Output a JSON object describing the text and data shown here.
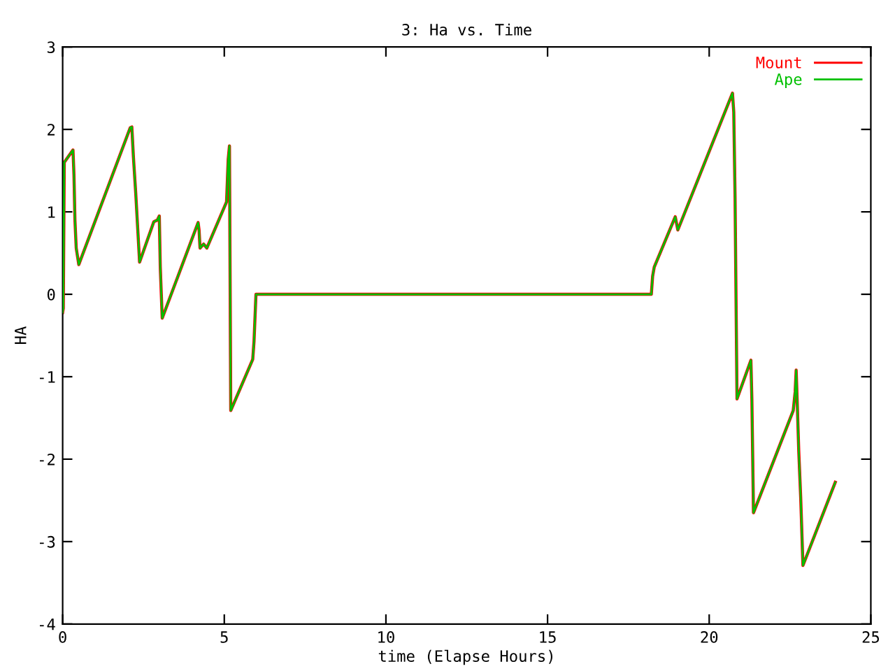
{
  "chart_data": {
    "type": "line",
    "title": "3: Ha vs. Time",
    "xlabel": "time (Elapse Hours)",
    "ylabel": "HA",
    "x": [
      0,
      0.02,
      0.05,
      0.32,
      0.35,
      0.38,
      0.42,
      0.5,
      2.09,
      2.14,
      2.19,
      2.26,
      2.38,
      2.82,
      2.93,
      2.99,
      3.02,
      3.08,
      4.19,
      4.22,
      4.25,
      4.36,
      4.46,
      5.07,
      5.12,
      5.16,
      5.18,
      5.2,
      5.88,
      5.92,
      5.96,
      5.98,
      18.21,
      18.25,
      18.3,
      18.95,
      19.03,
      20.72,
      20.76,
      20.8,
      20.84,
      20.86,
      21.29,
      21.32,
      21.37,
      22.6,
      22.66,
      22.69,
      22.72,
      22.77,
      22.83,
      22.9,
      23.9
    ],
    "series": [
      {
        "name": "Mount",
        "color": "#ff0000",
        "values": [
          -0.22,
          -0.17,
          1.6,
          1.75,
          1.45,
          0.9,
          0.56,
          0.36,
          2.02,
          2.03,
          1.66,
          1.23,
          0.39,
          0.88,
          0.9,
          0.95,
          0.33,
          -0.29,
          0.87,
          0.78,
          0.56,
          0.61,
          0.56,
          1.12,
          1.63,
          1.8,
          0.19,
          -1.41,
          -0.79,
          -0.57,
          -0.19,
          0.0,
          0.0,
          0.22,
          0.33,
          0.94,
          0.78,
          2.44,
          2.21,
          1.18,
          -0.46,
          -1.27,
          -0.8,
          -1.27,
          -2.65,
          -1.41,
          -1.18,
          -0.92,
          -1.27,
          -1.9,
          -2.46,
          -3.29,
          -2.28
        ]
      },
      {
        "name": "Ape",
        "color": "#00c000",
        "values": [
          -0.22,
          -0.17,
          1.6,
          1.75,
          1.45,
          0.9,
          0.56,
          0.36,
          2.02,
          2.03,
          1.66,
          1.23,
          0.39,
          0.88,
          0.9,
          0.95,
          0.33,
          -0.29,
          0.87,
          0.78,
          0.56,
          0.61,
          0.56,
          1.12,
          1.63,
          1.8,
          0.19,
          -1.41,
          -0.79,
          -0.57,
          -0.19,
          0.0,
          0.0,
          0.22,
          0.33,
          0.94,
          0.78,
          2.44,
          2.21,
          1.18,
          -0.46,
          -1.27,
          -0.8,
          -1.27,
          -2.65,
          -1.41,
          -1.18,
          -0.92,
          -1.27,
          -1.9,
          -2.46,
          -3.29,
          -2.28
        ]
      }
    ],
    "xlim": [
      0,
      25
    ],
    "xticks": [
      0,
      5,
      10,
      15,
      20,
      25
    ],
    "ylim": [
      -4,
      3
    ],
    "yticks": [
      -4,
      -3,
      -2,
      -1,
      0,
      1,
      2,
      3
    ],
    "grid": false,
    "legend": "top right",
    "marker": "none",
    "line_style": "solid"
  }
}
